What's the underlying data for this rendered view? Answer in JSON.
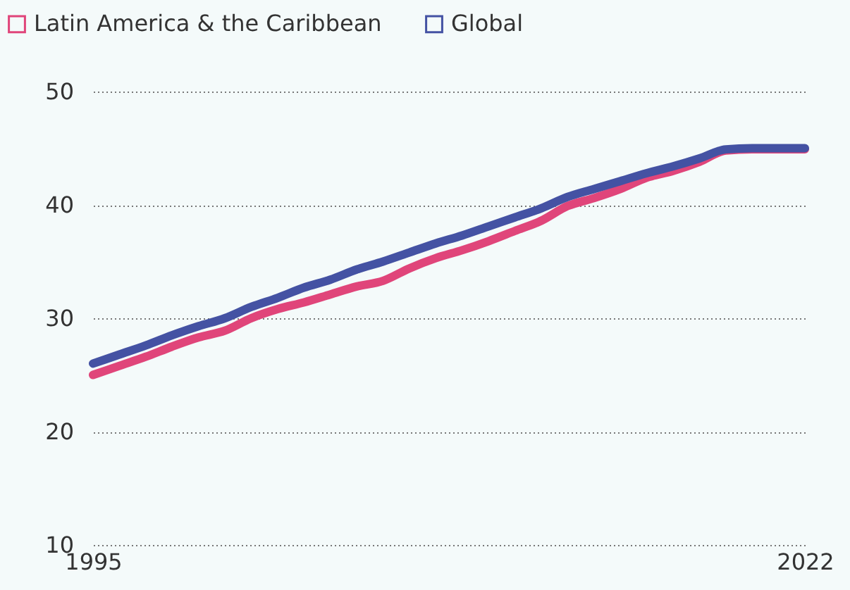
{
  "chart_data": {
    "type": "line",
    "x": [
      1995,
      1996,
      1997,
      1998,
      1999,
      2000,
      2001,
      2002,
      2003,
      2004,
      2005,
      2006,
      2007,
      2008,
      2009,
      2010,
      2011,
      2012,
      2013,
      2014,
      2015,
      2016,
      2017,
      2018,
      2019,
      2020,
      2021,
      2022
    ],
    "series": [
      {
        "name": "Latin America & the Caribbean",
        "color": "#e0457a",
        "values": [
          25,
          25.8,
          26.6,
          27.5,
          28.3,
          28.9,
          30.0,
          30.8,
          31.4,
          32.1,
          32.8,
          33.3,
          34.4,
          35.3,
          36.0,
          36.8,
          37.7,
          38.6,
          39.9,
          40.6,
          41.4,
          42.4,
          43.0,
          43.8,
          44.8,
          44.9,
          44.9,
          44.9
        ]
      },
      {
        "name": "Global",
        "color": "#4452a3",
        "values": [
          26,
          26.8,
          27.6,
          28.5,
          29.3,
          30.0,
          31.0,
          31.8,
          32.7,
          33.4,
          34.3,
          35.0,
          35.8,
          36.6,
          37.3,
          38.1,
          38.9,
          39.7,
          40.7,
          41.4,
          42.1,
          42.8,
          43.4,
          44.1,
          44.9,
          45,
          45,
          45
        ]
      }
    ],
    "xlim": [
      1995,
      2022
    ],
    "xticks": [
      1995,
      2022
    ],
    "ylim": [
      10,
      50
    ],
    "yticks": [
      10,
      20,
      30,
      40,
      50
    ],
    "grid": "y",
    "legend": "top left",
    "marker": "none",
    "line_style": "solid"
  }
}
